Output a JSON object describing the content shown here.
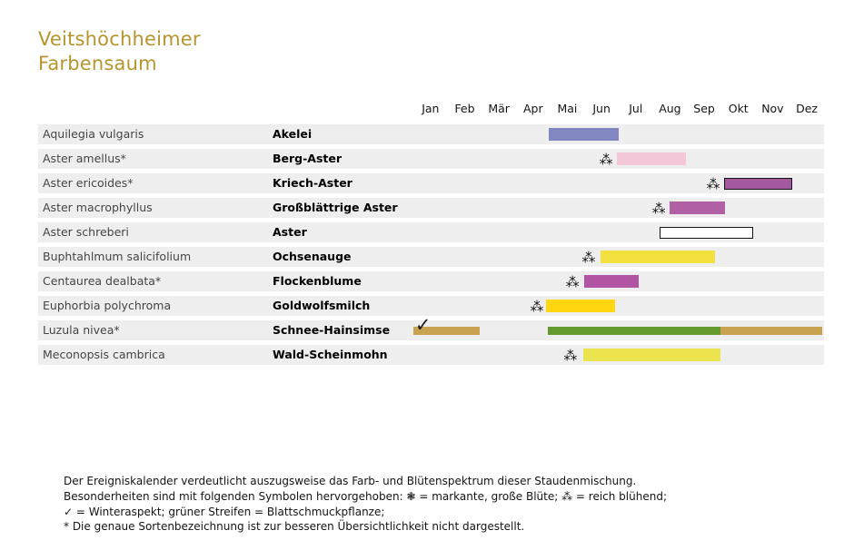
{
  "title": {
    "line1": "Veitshöchheimer",
    "line2": "Farbensaum"
  },
  "months": [
    "Jan",
    "Feb",
    "Mär",
    "Apr",
    "Mai",
    "Jun",
    "Jul",
    "Aug",
    "Sep",
    "Okt",
    "Nov",
    "Dez"
  ],
  "colors": {
    "title_gold": "#b6952f",
    "row_background": "#eeeeee",
    "bar_border": "#141414"
  },
  "chart_data": {
    "type": "timeline",
    "title": "Veitshöchheimer Farbensaum",
    "x_axis": {
      "tick_labels": [
        "Jan",
        "Feb",
        "Mär",
        "Apr",
        "Mai",
        "Jun",
        "Jul",
        "Aug",
        "Sep",
        "Okt",
        "Nov",
        "Dez"
      ],
      "unit": "month-index, Jan = 0, range 0–12"
    },
    "rows": [
      {
        "latin": "Aquilegia vulgaris",
        "german": "Akelei",
        "bars": [
          {
            "start": 3.95,
            "end": 6.0,
            "color": "#8286c1"
          }
        ],
        "symbols": []
      },
      {
        "latin": "Aster amellus*",
        "german": "Berg-Aster",
        "bars": [
          {
            "start": 5.94,
            "end": 7.96,
            "color": "#f3c7d8"
          }
        ],
        "symbols": [
          {
            "type": "reich-bluehend",
            "glyph": "⁂",
            "month": 5.63
          }
        ]
      },
      {
        "latin": "Aster ericoides*",
        "german": "Kriech-Aster",
        "bars": [
          {
            "start": 9.07,
            "end": 11.06,
            "color": "#a4589d",
            "border": true
          }
        ],
        "symbols": [
          {
            "type": "reich-bluehend",
            "glyph": "⁂",
            "month": 8.76
          }
        ]
      },
      {
        "latin": "Aster macrophyllus",
        "german": "Großblättrige Aster",
        "bars": [
          {
            "start": 7.48,
            "end": 9.1,
            "color": "#b260a4"
          }
        ],
        "symbols": [
          {
            "type": "reich-bluehend",
            "glyph": "⁂",
            "month": 7.17
          }
        ]
      },
      {
        "latin": "Aster schreberi",
        "german": "Aster",
        "bars": [
          {
            "start": 7.19,
            "end": 9.92,
            "color": "#ffffff",
            "border": true
          }
        ],
        "symbols": []
      },
      {
        "latin": "Buphtahlmum salicifolium",
        "german": "Ochsenauge",
        "bars": [
          {
            "start": 5.46,
            "end": 8.81,
            "color": "#f2e13e"
          }
        ],
        "symbols": [
          {
            "type": "reich-bluehend",
            "glyph": "⁂",
            "month": 5.12
          }
        ]
      },
      {
        "latin": "Centaurea dealbata*",
        "german": "Flockenblume",
        "bars": [
          {
            "start": 4.99,
            "end": 6.58,
            "color": "#b054a3"
          }
        ],
        "symbols": [
          {
            "type": "reich-bluehend",
            "glyph": "⁂",
            "month": 4.65
          }
        ]
      },
      {
        "latin": "Euphorbia polychroma",
        "german": "Goldwolfsmilch",
        "bars": [
          {
            "start": 3.87,
            "end": 5.89,
            "color": "#ffd60f"
          }
        ],
        "symbols": [
          {
            "type": "reich-bluehend",
            "glyph": "⁂",
            "month": 3.61
          }
        ]
      },
      {
        "latin": "Luzula nivea*",
        "german": "Schnee-Hainsimse",
        "bars": [
          {
            "start": 0.0,
            "end": 1.94,
            "color": "#c9a251",
            "thin": true
          },
          {
            "start": 3.93,
            "end": 8.97,
            "color": "#639a2e",
            "thin": true
          },
          {
            "start": 8.97,
            "end": 11.96,
            "color": "#c9a251",
            "thin": true
          }
        ],
        "symbols": [
          {
            "type": "winteraspekt",
            "glyph": "✓",
            "month": 0.05
          }
        ]
      },
      {
        "latin": "Meconopsis cambrica",
        "german": "Wald-Scheinmohn",
        "bars": [
          {
            "start": 4.96,
            "end": 8.97,
            "color": "#ece44f"
          }
        ],
        "symbols": [
          {
            "type": "reich-bluehend",
            "glyph": "⁂",
            "month": 4.59
          }
        ]
      }
    ]
  },
  "footnote": {
    "lines": [
      "Der Ereigniskalender verdeutlicht auszugsweise das Farb- und Blütenspektrum dieser Staudenmischung.",
      "Besonderheiten sind mit folgenden Symbolen hervorgehoben: ❃ = markante, große Blüte; ⁂ = reich blühend;",
      "✓ = Winteraspekt; grüner Streifen = Blattschmuckpflanze;",
      "* Die genaue Sortenbezeichnung ist zur besseren Übersichtlichkeit nicht dargestellt."
    ]
  }
}
